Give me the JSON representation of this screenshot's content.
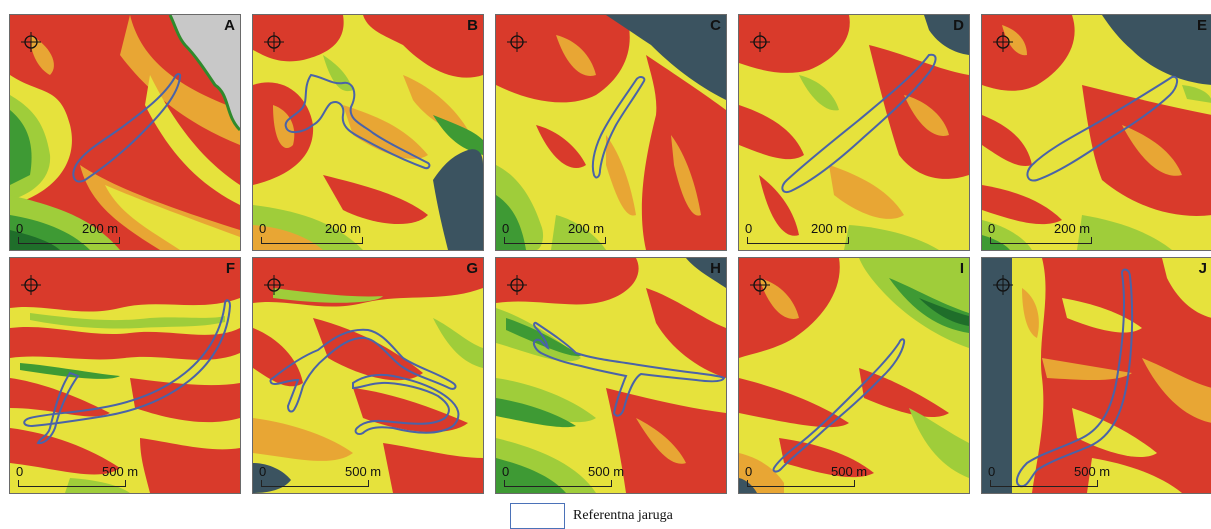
{
  "panels": [
    {
      "id": "A",
      "label": "A",
      "scale_zero": "0",
      "scale_distance": "200 m",
      "sea": "grey-top-right",
      "palette": [
        "#d93a2b",
        "#e8a634",
        "#e6e23c",
        "#9fcd3a",
        "#3e9a34",
        "#1f6e2a"
      ]
    },
    {
      "id": "B",
      "label": "B",
      "scale_zero": "0",
      "scale_distance": "200 m",
      "sea": "bottom-right",
      "palette": [
        "#d93a2b",
        "#e8a634",
        "#e6e23c",
        "#9fcd3a",
        "#3e9a34"
      ]
    },
    {
      "id": "C",
      "label": "C",
      "scale_zero": "0",
      "scale_distance": "200 m",
      "sea": "top-right",
      "palette": [
        "#d93a2b",
        "#e8a634",
        "#e6e23c",
        "#9fcd3a",
        "#3e9a34"
      ]
    },
    {
      "id": "D",
      "label": "D",
      "scale_zero": "0",
      "scale_distance": "200 m",
      "sea": "top-right-small",
      "palette": [
        "#d93a2b",
        "#e8a634",
        "#e6e23c",
        "#9fcd3a",
        "#3e9a34"
      ]
    },
    {
      "id": "E",
      "label": "E",
      "scale_zero": "0",
      "scale_distance": "200 m",
      "sea": "top-right-wide",
      "palette": [
        "#d93a2b",
        "#e8a634",
        "#e6e23c",
        "#9fcd3a",
        "#3e9a34"
      ]
    },
    {
      "id": "F",
      "label": "F",
      "scale_zero": "0",
      "scale_distance": "500 m",
      "sea": "none",
      "palette": [
        "#d93a2b",
        "#e8a634",
        "#e6e23c",
        "#9fcd3a",
        "#3e9a34"
      ]
    },
    {
      "id": "G",
      "label": "G",
      "scale_zero": "0",
      "scale_distance": "500 m",
      "sea": "bottom-left",
      "palette": [
        "#d93a2b",
        "#e8a634",
        "#e6e23c",
        "#9fcd3a",
        "#3e9a34"
      ]
    },
    {
      "id": "H",
      "label": "H",
      "scale_zero": "0",
      "scale_distance": "500 m",
      "sea": "right-corner",
      "palette": [
        "#d93a2b",
        "#e8a634",
        "#e6e23c",
        "#9fcd3a",
        "#3e9a34",
        "#1f6e2a"
      ]
    },
    {
      "id": "I",
      "label": "I",
      "scale_zero": "0",
      "scale_distance": "500 m",
      "sea": "bottom-left-corner",
      "palette": [
        "#d93a2b",
        "#e8a634",
        "#e6e23c",
        "#9fcd3a",
        "#3e9a34",
        "#1f6e2a"
      ]
    },
    {
      "id": "J",
      "label": "J",
      "scale_zero": "0",
      "scale_distance": "500 m",
      "sea": "left-strip",
      "palette": [
        "#d93a2b",
        "#e8a634",
        "#e6e23c",
        "#9fcd3a",
        "#3e9a34"
      ]
    }
  ],
  "legend": {
    "label": "Referentna jaruga",
    "outline_color": "#4b72b8"
  },
  "colors": {
    "gully_outline": "#4a63a8",
    "sea": "#3b5360",
    "no_data": "#c8c8c8"
  }
}
